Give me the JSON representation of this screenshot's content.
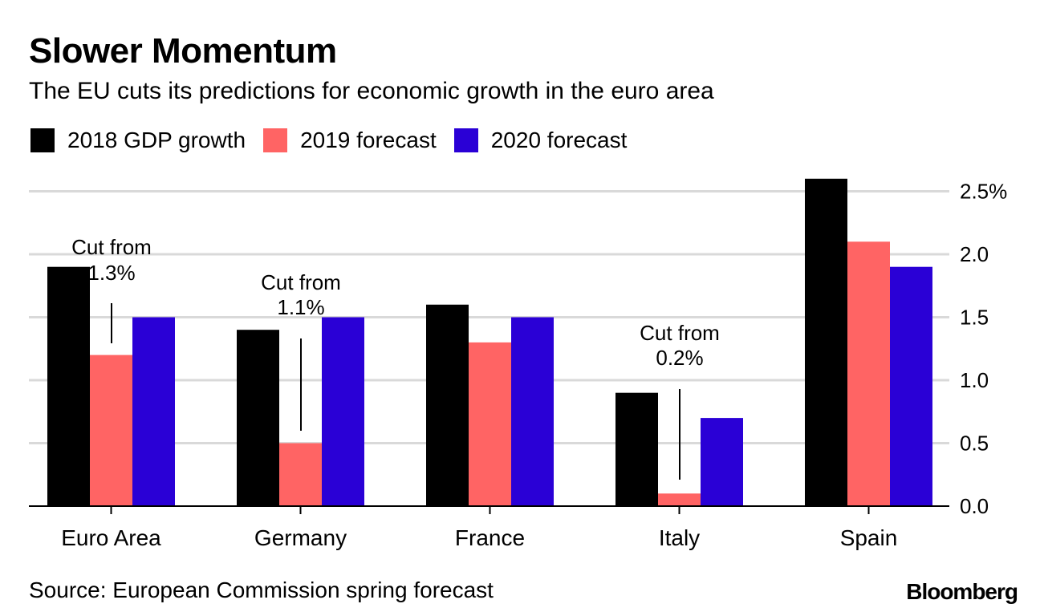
{
  "header": {
    "title": "Slower Momentum",
    "subtitle": "The EU cuts its predictions for economic growth in the euro area"
  },
  "colors": {
    "s2018": "#000000",
    "s2019": "#ff6464",
    "s2020": "#2a00d6",
    "grid": "#d9d9d9",
    "axis": "#000000"
  },
  "footer": {
    "source": "Source: European Commission spring forecast",
    "brand": "Bloomberg"
  },
  "chart_data": {
    "type": "bar",
    "title": "Slower Momentum",
    "subtitle": "The EU cuts its predictions for economic growth in the euro area",
    "categories": [
      "Euro Area",
      "Germany",
      "France",
      "Italy",
      "Spain"
    ],
    "series": [
      {
        "name": "2018 GDP growth",
        "color": "#000000",
        "values": [
          1.9,
          1.4,
          1.6,
          0.9,
          2.6
        ]
      },
      {
        "name": "2019 forecast",
        "color": "#ff6464",
        "values": [
          1.2,
          0.5,
          1.3,
          0.1,
          2.1
        ]
      },
      {
        "name": "2020 forecast",
        "color": "#2a00d6",
        "values": [
          1.5,
          1.5,
          1.5,
          0.7,
          1.9
        ]
      }
    ],
    "y_axis": {
      "side": "right",
      "ylim": [
        0,
        2.6
      ],
      "ticks": [
        0,
        0.5,
        1.0,
        1.5,
        2.0,
        2.5
      ],
      "tick_labels": [
        "0.0",
        "0.5",
        "1.0",
        "1.5",
        "2.0",
        "2.5%"
      ]
    },
    "grid": true,
    "legend": "top-left",
    "annotations": [
      {
        "category": "Euro Area",
        "line1": "Cut from",
        "line2": "1.3%",
        "previous_value": 1.3
      },
      {
        "category": "Germany",
        "line1": "Cut from",
        "line2": "1.1%",
        "previous_value": 1.1
      },
      {
        "category": "Italy",
        "line1": "Cut from",
        "line2": "0.2%",
        "previous_value": 0.2
      }
    ],
    "xlabel": "",
    "ylabel": ""
  }
}
